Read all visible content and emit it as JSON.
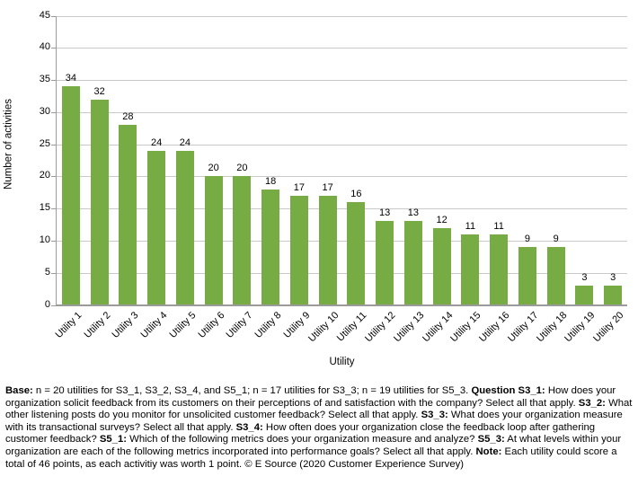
{
  "chart_data": {
    "type": "bar",
    "title": "",
    "categories": [
      "Utility 1",
      "Utility 2",
      "Utility 3",
      "Utility 4",
      "Utility 5",
      "Utility 6",
      "Utility 7",
      "Utility 8",
      "Utility 9",
      "Utility 10",
      "Utility 11",
      "Utility 12",
      "Utility 13",
      "Utility 14",
      "Utility 15",
      "Utility 16",
      "Utility 17",
      "Utility 18",
      "Utility 19",
      "Utility 20"
    ],
    "values": [
      34,
      32,
      28,
      24,
      24,
      20,
      20,
      18,
      17,
      17,
      16,
      13,
      13,
      12,
      11,
      11,
      9,
      9,
      3,
      3
    ],
    "data_labels_shown": true,
    "xlabel": "Utility",
    "ylabel": "Number of activities",
    "ylim": [
      0,
      45
    ],
    "yticks": [
      0,
      5,
      10,
      15,
      20,
      25,
      30,
      35,
      40,
      45
    ],
    "grid": true,
    "legend": false,
    "colors": {
      "bar": "#77AB43",
      "gridline": "#c9c9c9",
      "axis": "#9b9b9b",
      "text": "#000000"
    }
  },
  "footnote": {
    "segments": [
      {
        "b": true,
        "t": "Base:"
      },
      {
        "b": false,
        "t": " n = 20 utilities for S3_1, S3_2, S3_4, and S5_1; n = 17 utilities for S3_3; n = 19 utilities for S5_3. "
      },
      {
        "b": true,
        "t": "Question S3_1:"
      },
      {
        "b": false,
        "t": " How does your organization solicit feedback from its customers on their perceptions of and satisfaction with the company? Select all that apply. "
      },
      {
        "b": true,
        "t": "S3_2:"
      },
      {
        "b": false,
        "t": " What other listening posts do you monitor for unsolicited customer feedback? Select all that apply. "
      },
      {
        "b": true,
        "t": "S3_3:"
      },
      {
        "b": false,
        "t": " What does your organization measure with its transactional surveys? Select all that apply. "
      },
      {
        "b": true,
        "t": "S3_4:"
      },
      {
        "b": false,
        "t": " How often does your organization close the feedback loop after gathering customer feedback? "
      },
      {
        "b": true,
        "t": "S5_1:"
      },
      {
        "b": false,
        "t": " Which of the following metrics does your organization measure and analyze? "
      },
      {
        "b": true,
        "t": "S5_3:"
      },
      {
        "b": false,
        "t": " At what levels within your organization are each of the following metrics incorporated into performance goals? Select all that apply. "
      },
      {
        "b": true,
        "t": "Note:"
      },
      {
        "b": false,
        "t": " Each utility could score a total of 46 points, as each activitiy was worth 1 point. © E Source (2020 Customer Experience Survey)"
      }
    ]
  }
}
